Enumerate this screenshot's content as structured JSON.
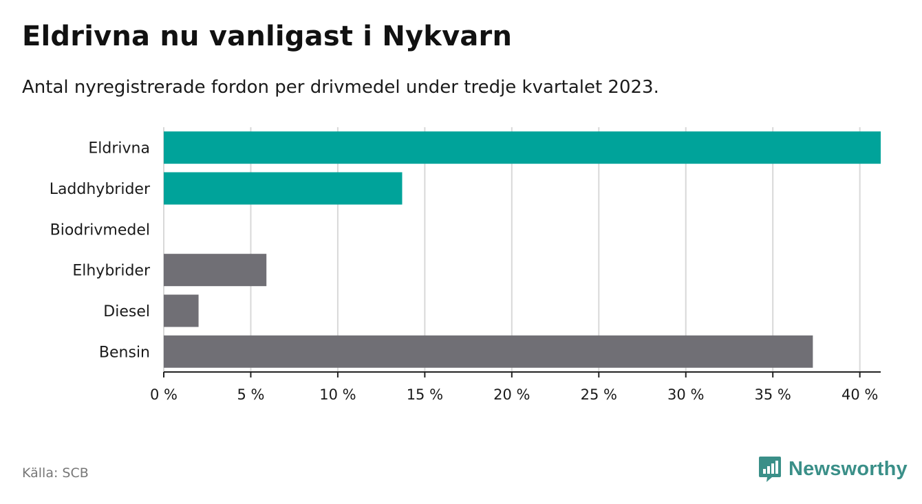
{
  "header": {
    "title": "Eldrivna nu vanligast i Nykvarn",
    "subtitle": "Antal nyregistrerade fordon per drivmedel under tredje kvartalet 2023."
  },
  "footer": {
    "source": "Källa: SCB",
    "brand": "Newsworthy"
  },
  "colors": {
    "highlight": "#00a39a",
    "other": "#706f75",
    "grid": "#d8d8d8",
    "axis": "#222222",
    "brand": "#3a8f88"
  },
  "chart_data": {
    "type": "bar",
    "orientation": "horizontal",
    "title": "Eldrivna nu vanligast i Nykvarn",
    "subtitle": "Antal nyregistrerade fordon per drivmedel under tredje kvartalet 2023.",
    "categories": [
      "Eldrivna",
      "Laddhybrider",
      "Biodrivmedel",
      "Elhybrider",
      "Diesel",
      "Bensin"
    ],
    "values": [
      41.2,
      13.7,
      0,
      5.9,
      2.0,
      37.3
    ],
    "highlight": [
      true,
      true,
      false,
      false,
      false,
      false
    ],
    "unit": "%",
    "xlim": [
      0,
      41.2
    ],
    "xticks": [
      0,
      5,
      10,
      15,
      20,
      25,
      30,
      35,
      40
    ],
    "xtick_labels": [
      "0 %",
      "5 %",
      "10 %",
      "15 %",
      "20 %",
      "25 %",
      "30 %",
      "35 %",
      "40 %"
    ],
    "grid": true,
    "xlabel": "",
    "ylabel": ""
  }
}
